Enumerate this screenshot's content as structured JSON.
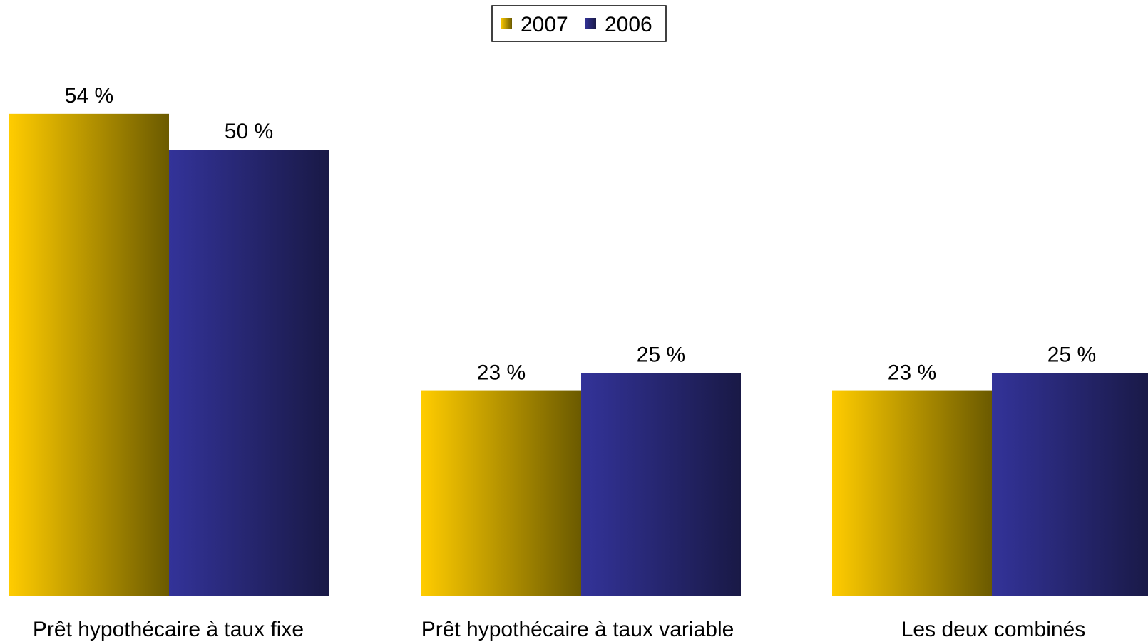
{
  "chart_data": {
    "type": "bar",
    "categories": [
      "Prêt hypothécaire à taux fixe",
      "Prêt hypothécaire à taux variable",
      "Les deux combinés"
    ],
    "series": [
      {
        "name": "2007",
        "values": [
          54,
          23,
          23
        ],
        "labels": [
          "54 %",
          "23 %",
          "23 %"
        ],
        "color_start": "#FFCC00",
        "color_end": "#6B5A00"
      },
      {
        "name": "2006",
        "values": [
          50,
          25,
          25
        ],
        "labels": [
          "50 %",
          "25 %",
          "25 %"
        ],
        "color_start": "#333399",
        "color_end": "#191946"
      }
    ],
    "title": "",
    "xlabel": "",
    "ylabel": "",
    "ylim": [
      0,
      60
    ],
    "grid": false,
    "legend_position": "top-center"
  }
}
